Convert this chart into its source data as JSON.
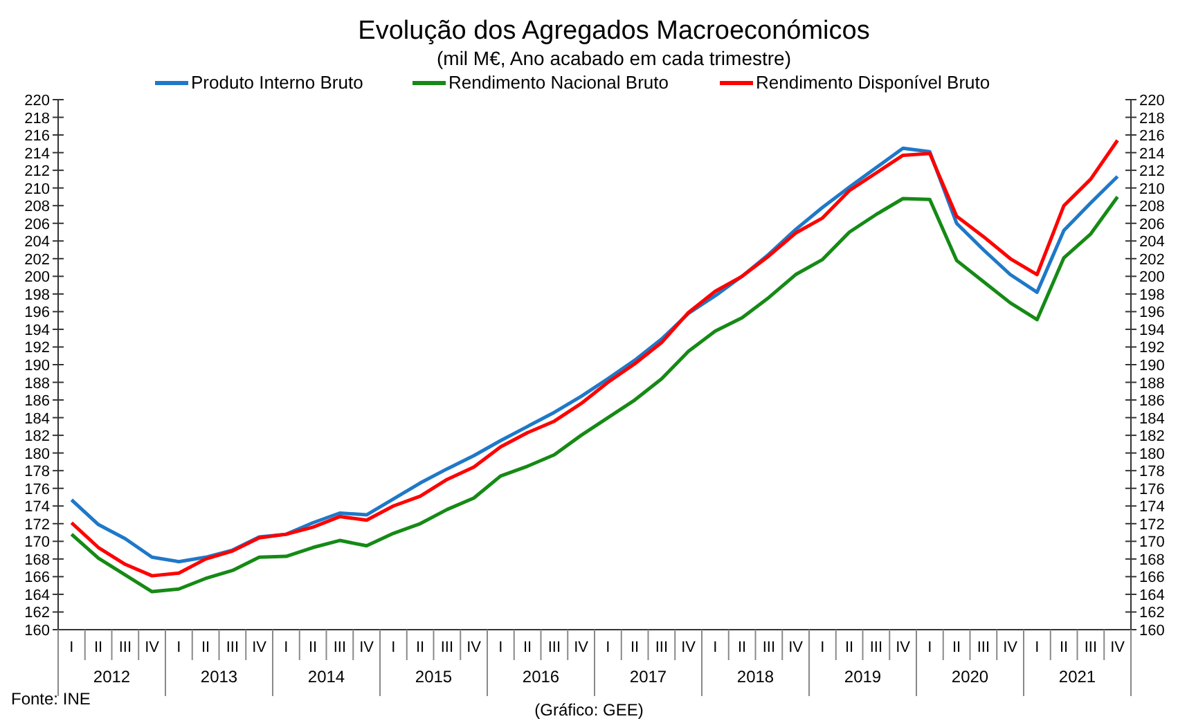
{
  "chart_data": {
    "type": "line",
    "title": "Evolução dos Agregados Macroeconómicos",
    "subtitle": "(mil M€, Ano acabado em cada trimestre)",
    "categories": [
      "I",
      "II",
      "III",
      "IV",
      "I",
      "II",
      "III",
      "IV",
      "I",
      "II",
      "III",
      "IV",
      "I",
      "II",
      "III",
      "IV",
      "I",
      "II",
      "III",
      "IV",
      "I",
      "II",
      "III",
      "IV",
      "I",
      "II",
      "III",
      "IV",
      "I",
      "II",
      "III",
      "IV",
      "I",
      "II",
      "III",
      "IV",
      "I",
      "II",
      "III",
      "IV"
    ],
    "series": [
      {
        "name": "Produto Interno Bruto",
        "color": "#1f78c8",
        "values": [
          174.7,
          171.9,
          170.3,
          168.2,
          167.7,
          168.2,
          169.0,
          170.5,
          170.8,
          172.1,
          173.2,
          173.0,
          174.8,
          176.6,
          178.2,
          179.7,
          181.4,
          183.0,
          184.6,
          186.4,
          188.4,
          190.5,
          192.9,
          195.8,
          197.8,
          200.0,
          202.5,
          205.3,
          207.8,
          210.1,
          212.3,
          214.5,
          214.1,
          206.0,
          203.0,
          200.2,
          198.2,
          205.2,
          208.3,
          211.3
        ]
      },
      {
        "name": "Rendimento Nacional Bruto",
        "color": "#158a15",
        "values": [
          170.8,
          168.1,
          166.2,
          164.3,
          164.6,
          165.8,
          166.7,
          168.2,
          168.3,
          169.3,
          170.1,
          169.5,
          170.9,
          172.0,
          173.6,
          174.9,
          177.4,
          178.5,
          179.8,
          182.0,
          184.0,
          186.0,
          188.4,
          191.5,
          193.8,
          195.3,
          197.6,
          200.2,
          201.9,
          205.0,
          207.0,
          208.8,
          208.7,
          201.8,
          199.4,
          197.0,
          195.1,
          202.1,
          204.8,
          209.0
        ]
      },
      {
        "name": "Rendimento Disponível Bruto",
        "color": "#ff0000",
        "values": [
          172.1,
          169.3,
          167.4,
          166.1,
          166.4,
          168.0,
          168.9,
          170.4,
          170.8,
          171.6,
          172.8,
          172.4,
          174.0,
          175.1,
          177.0,
          178.4,
          180.7,
          182.3,
          183.6,
          185.6,
          188.0,
          190.1,
          192.5,
          195.9,
          198.3,
          200.0,
          202.3,
          204.9,
          206.6,
          209.7,
          211.7,
          213.7,
          213.9,
          206.8,
          204.5,
          202.0,
          200.2,
          208.0,
          211.0,
          215.4
        ]
      }
    ],
    "ylim": [
      160,
      220
    ],
    "yticks": [
      160,
      162,
      164,
      166,
      168,
      170,
      172,
      174,
      176,
      178,
      180,
      182,
      184,
      186,
      188,
      190,
      192,
      194,
      196,
      198,
      200,
      202,
      204,
      206,
      208,
      210,
      212,
      214,
      216,
      218,
      220
    ],
    "y2lim": [
      160,
      220
    ],
    "y2ticks": [
      160,
      162,
      164,
      166,
      168,
      170,
      172,
      174,
      176,
      178,
      180,
      182,
      184,
      186,
      188,
      190,
      192,
      194,
      196,
      198,
      200,
      202,
      204,
      206,
      208,
      210,
      212,
      214,
      216,
      218,
      220
    ],
    "annotations": [
      "Fonte: INE",
      "(Gráfico: GEE)",
      "2012",
      "2013",
      "2014",
      "2015",
      "2016",
      "2017",
      "2018",
      "2019",
      "2020",
      "2021"
    ],
    "legend": "top",
    "grid": false,
    "marker": "none",
    "line_style": "solid"
  }
}
